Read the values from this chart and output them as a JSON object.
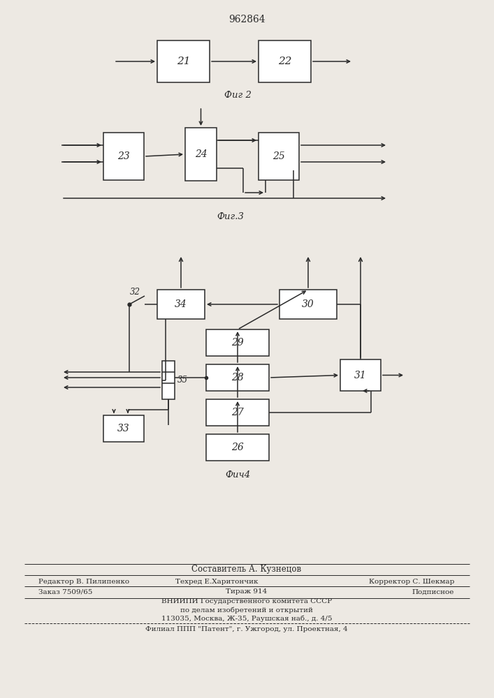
{
  "title": "962864",
  "fig2_label": "Фиг 2",
  "fig3_label": "Фиг.3",
  "fig4_label": "Фич4",
  "bg_color": "#ede9e3",
  "line_color": "#2a2a2a",
  "box_color": "#ffffff",
  "footer": [
    [
      "center",
      353,
      815,
      8.5,
      "Составитель А. Кузнецов"
    ],
    [
      "left",
      55,
      833,
      7.5,
      "Редактор В. Пилипенко"
    ],
    [
      "center",
      310,
      833,
      7.5,
      "Техред Е.Харитончик"
    ],
    [
      "right",
      650,
      833,
      7.5,
      "Корректор С. Шекмар"
    ],
    [
      "left",
      55,
      848,
      7.5,
      "Заказ 7509/65"
    ],
    [
      "center",
      353,
      848,
      7.5,
      "Тираж 914"
    ],
    [
      "right",
      650,
      848,
      7.5,
      "Подписное"
    ],
    [
      "center",
      353,
      862,
      7.5,
      "ВНИИПИ Государственного комитета СССР"
    ],
    [
      "center",
      353,
      874,
      7.5,
      "по делам изобретений и открытий"
    ],
    [
      "center",
      353,
      886,
      7.5,
      "113035, Москва, Ж-35, Раушская наб., д. 4/5"
    ],
    [
      "center",
      353,
      902,
      7.5,
      "Филиал ППП \"Патент\", г. Ужгород, ул. Проектная, 4"
    ]
  ]
}
